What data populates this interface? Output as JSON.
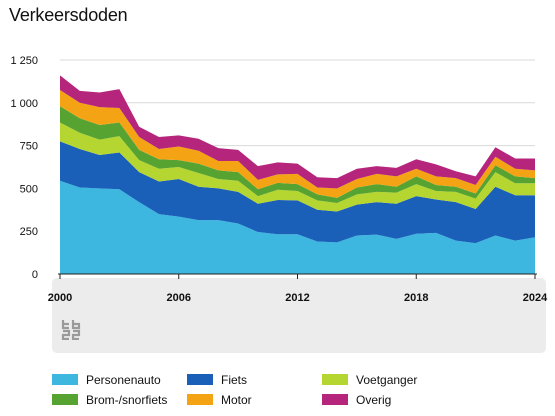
{
  "title": "Verkeersdoden",
  "chart_data": {
    "type": "area",
    "stacked": true,
    "title": "Verkeersdoden",
    "xlabel": "",
    "ylabel": "",
    "ylim": [
      0,
      1250
    ],
    "xlim": [
      2000,
      2024
    ],
    "grid": true,
    "legend_position": "bottom",
    "y_ticks": [
      0,
      250,
      500,
      750,
      1000,
      1250
    ],
    "y_tick_labels": [
      "0",
      "250",
      "500",
      "750",
      "1 000",
      "1 250"
    ],
    "x_ticks": [
      2000,
      2006,
      2012,
      2018,
      2024
    ],
    "x_tick_labels": [
      "2000",
      "2006",
      "2012",
      "2018",
      "2024"
    ],
    "x": [
      2000,
      2001,
      2002,
      2003,
      2004,
      2005,
      2006,
      2007,
      2008,
      2009,
      2010,
      2011,
      2012,
      2013,
      2014,
      2015,
      2016,
      2017,
      2018,
      2019,
      2020,
      2021,
      2022,
      2023,
      2024
    ],
    "series": [
      {
        "name": "Personenauto",
        "color": "#3db7e0",
        "values": [
          545,
          505,
          500,
          495,
          420,
          350,
          335,
          315,
          315,
          295,
          245,
          232,
          232,
          190,
          185,
          225,
          230,
          205,
          235,
          240,
          195,
          180,
          225,
          195,
          215
        ]
      },
      {
        "name": "Fiets",
        "color": "#1a5fb8",
        "values": [
          230,
          225,
          195,
          215,
          175,
          190,
          220,
          195,
          185,
          185,
          165,
          200,
          198,
          185,
          180,
          180,
          190,
          205,
          220,
          195,
          225,
          200,
          285,
          265,
          245
        ]
      },
      {
        "name": "Voetganger",
        "color": "#b5d531",
        "values": [
          110,
          95,
          90,
          95,
          70,
          75,
          70,
          80,
          55,
          65,
          45,
          60,
          55,
          55,
          50,
          60,
          60,
          65,
          70,
          50,
          60,
          60,
          85,
          70,
          70
        ]
      },
      {
        "name": "Brom-/snorfiets",
        "color": "#56a332",
        "values": [
          95,
          85,
          85,
          80,
          60,
          55,
          40,
          55,
          50,
          50,
          40,
          40,
          40,
          35,
          30,
          40,
          45,
          35,
          45,
          35,
          30,
          30,
          40,
          40,
          30
        ]
      },
      {
        "name": "Motor",
        "color": "#f4a315",
        "values": [
          95,
          90,
          105,
          85,
          75,
          60,
          80,
          75,
          55,
          65,
          55,
          50,
          60,
          40,
          55,
          50,
          60,
          60,
          45,
          50,
          50,
          50,
          50,
          45,
          45
        ]
      },
      {
        "name": "Overig",
        "color": "#b5257c",
        "values": [
          85,
          70,
          85,
          110,
          60,
          70,
          65,
          70,
          75,
          65,
          80,
          70,
          60,
          60,
          60,
          60,
          45,
          50,
          55,
          70,
          40,
          50,
          55,
          60,
          70
        ]
      }
    ]
  },
  "logo_label": "cbs",
  "colors": {
    "grid": "#d9d9d9",
    "axis": "#222222",
    "footer_band": "#ececec"
  }
}
